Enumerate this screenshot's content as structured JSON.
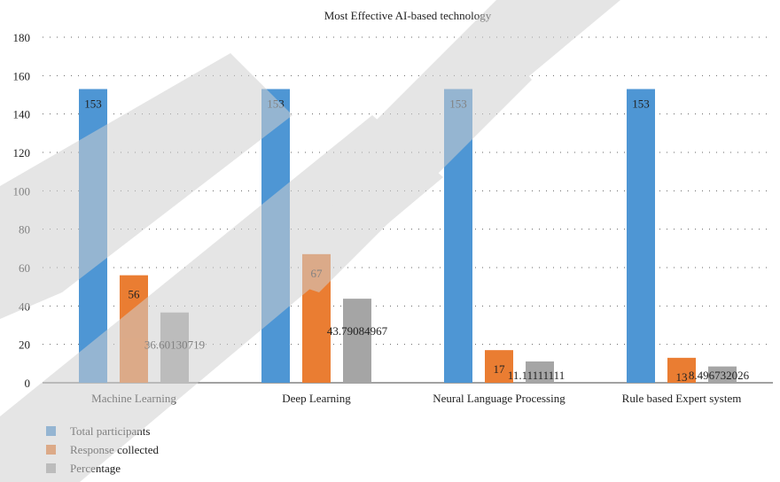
{
  "chart_data": {
    "type": "bar",
    "title": "Most Effective AI-based technology",
    "categories": [
      "Machine Learning",
      "Deep Learning",
      "Neural Language Processing",
      "Rule based Expert system"
    ],
    "series": [
      {
        "name": "Total participants",
        "values": [
          153,
          153,
          153,
          153
        ],
        "labels": [
          "153",
          "153",
          "153",
          "153"
        ],
        "color": "#4e96d4"
      },
      {
        "name": "Response collected",
        "values": [
          56,
          67,
          17,
          13
        ],
        "labels": [
          "56",
          "67",
          "17",
          "13"
        ],
        "color": "#ea7d32"
      },
      {
        "name": "Percentage",
        "values": [
          36.60130719,
          43.79084967,
          11.11111111,
          8.496732026
        ],
        "labels": [
          "36.60130719",
          "43.79084967",
          "11.11111111",
          "8.496732026"
        ],
        "color": "#a5a5a5"
      }
    ],
    "ylim": [
      0,
      180
    ],
    "yticks": [
      "0",
      "20",
      "40",
      "60",
      "80",
      "100",
      "120",
      "140",
      "160",
      "180"
    ],
    "grid": true,
    "legend_position": "bottom-left"
  },
  "watermark": {
    "text": "RETRACTED",
    "color": "#d4d4d4"
  }
}
